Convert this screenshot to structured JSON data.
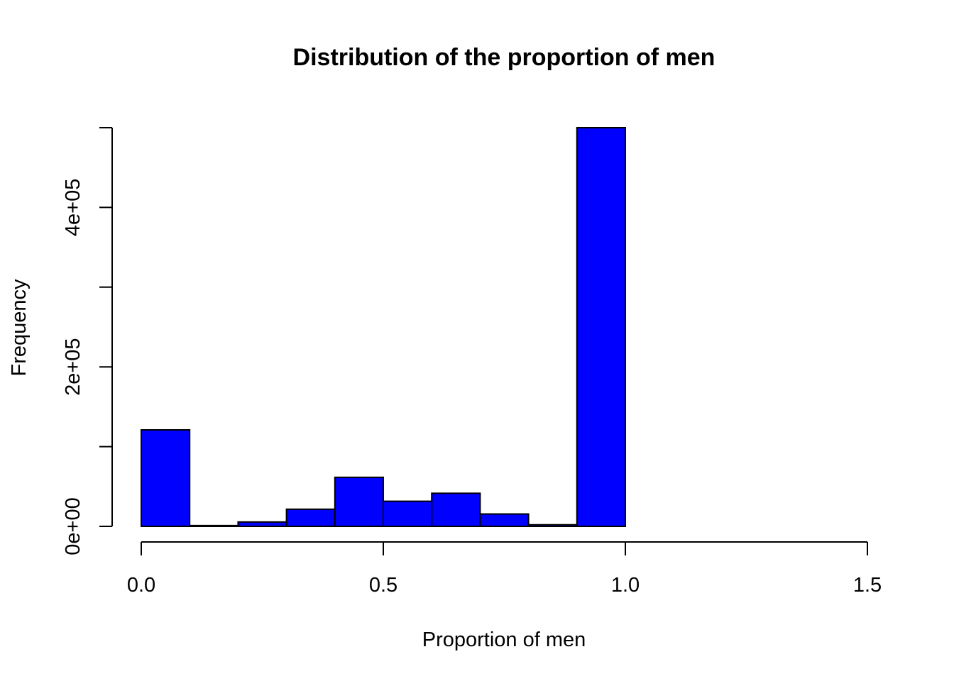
{
  "chart_data": {
    "type": "bar",
    "title": "Distribution of the proportion of men",
    "xlabel": "Proportion of men",
    "ylabel": "Frequency",
    "bar_color": "#0000ff",
    "border_color": "#000000",
    "xlim": [
      0,
      1.5
    ],
    "ylim": [
      0,
      500000
    ],
    "x_ticks": [
      {
        "value": 0,
        "label": "0.0"
      },
      {
        "value": 0.5,
        "label": "0.5"
      },
      {
        "value": 1.0,
        "label": "1.0"
      },
      {
        "value": 1.5,
        "label": "1.5"
      }
    ],
    "y_ticks": [
      {
        "value": 0,
        "label": "0e+00"
      },
      {
        "value": 100000,
        "label": ""
      },
      {
        "value": 200000,
        "label": "2e+05"
      },
      {
        "value": 300000,
        "label": ""
      },
      {
        "value": 400000,
        "label": "4e+05"
      },
      {
        "value": 500000,
        "label": ""
      }
    ],
    "bins": [
      {
        "start": 0.0,
        "end": 0.1,
        "value": 121000
      },
      {
        "start": 0.1,
        "end": 0.2,
        "value": 1000
      },
      {
        "start": 0.2,
        "end": 0.3,
        "value": 5500
      },
      {
        "start": 0.3,
        "end": 0.4,
        "value": 21500
      },
      {
        "start": 0.4,
        "end": 0.5,
        "value": 61500
      },
      {
        "start": 0.5,
        "end": 0.6,
        "value": 31500
      },
      {
        "start": 0.6,
        "end": 0.7,
        "value": 41500
      },
      {
        "start": 0.7,
        "end": 0.8,
        "value": 15500
      },
      {
        "start": 0.8,
        "end": 0.9,
        "value": 2000
      },
      {
        "start": 0.9,
        "end": 1.0,
        "value": 500000
      },
      {
        "start": 1.0,
        "end": 1.1,
        "value": 0
      },
      {
        "start": 1.1,
        "end": 1.2,
        "value": 0
      },
      {
        "start": 1.2,
        "end": 1.3,
        "value": 0
      },
      {
        "start": 1.3,
        "end": 1.4,
        "value": 0
      },
      {
        "start": 1.4,
        "end": 1.5,
        "value": 0
      }
    ]
  }
}
